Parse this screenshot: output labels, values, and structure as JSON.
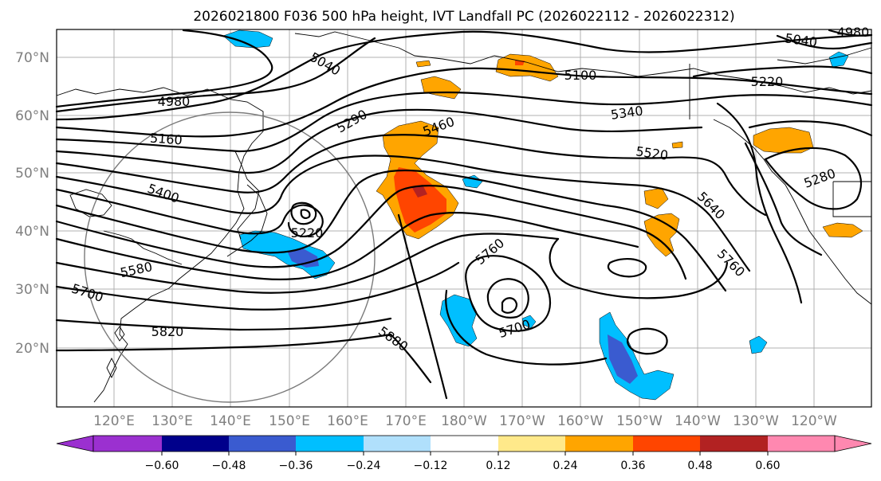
{
  "title": "2026021800 F036 500 hPa height, IVT Landfall PC (2026022112 - 2026022312)",
  "lat_labels": [
    "70°N",
    "60°N",
    "50°N",
    "40°N",
    "30°N",
    "20°N"
  ],
  "lon_labels": [
    "120°E",
    "130°E",
    "140°E",
    "150°E",
    "160°E",
    "170°E",
    "180°W",
    "170°W",
    "160°W",
    "150°W",
    "140°W",
    "130°W",
    "120°W"
  ],
  "contour_labels": [
    "5040",
    "4980",
    "5100",
    "5220",
    "5340",
    "5460",
    "5520",
    "5280",
    "5290",
    "5160",
    "5400",
    "5220",
    "5580",
    "5700",
    "5820",
    "5760",
    "5640",
    "5760",
    "5700",
    "5880",
    "5040",
    "4980"
  ],
  "colorbar": {
    "ticks": [
      "−0.60",
      "−0.48",
      "−0.36",
      "−0.24",
      "−0.12",
      "0.12",
      "0.24",
      "0.36",
      "0.48",
      "0.60"
    ],
    "colors": [
      "#9b30d0",
      "#00008b",
      "#3a5bd0",
      "#00bfff",
      "#b0e0fc",
      "#ffffff",
      "#ffe98a",
      "#ffa500",
      "#ff4500",
      "#b22222",
      "#ff88b0"
    ]
  }
}
